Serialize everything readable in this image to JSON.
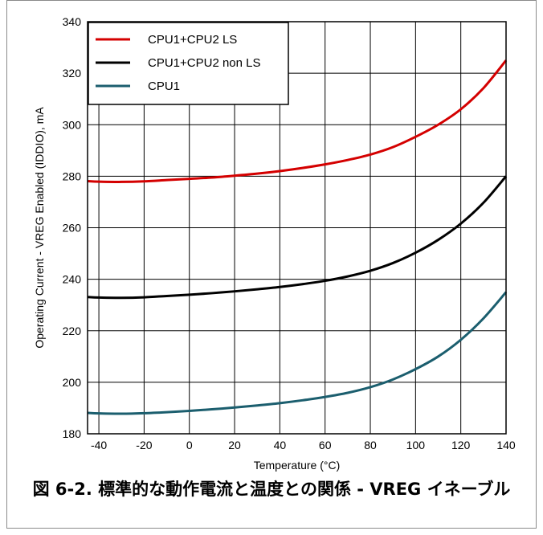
{
  "chart_data": {
    "type": "line",
    "xlabel": "Temperature (°C)",
    "ylabel": "Operating Current - VREG Enabled (IDDIO), mA",
    "xlim": [
      -45,
      140
    ],
    "ylim": [
      180,
      340
    ],
    "xticks": [
      -40,
      -20,
      0,
      20,
      40,
      60,
      80,
      100,
      120,
      140
    ],
    "yticks": [
      180,
      200,
      220,
      240,
      260,
      280,
      300,
      320,
      340
    ],
    "grid": true,
    "legend_position": "top-left",
    "x": [
      -45,
      -40,
      -30,
      -20,
      -10,
      0,
      10,
      20,
      30,
      40,
      50,
      60,
      70,
      80,
      90,
      100,
      110,
      120,
      130,
      140
    ],
    "series": [
      {
        "name": "CPU1+CPU2 LS",
        "color": "#d40000",
        "values": [
          278.1,
          277.9,
          277.8,
          278.0,
          278.5,
          279.0,
          279.5,
          280.2,
          281.0,
          282.0,
          283.2,
          284.6,
          286.3,
          288.4,
          291.3,
          295.3,
          300.0,
          306.0,
          314.2,
          325.0
        ]
      },
      {
        "name": "CPU1+CPU2 non LS",
        "color": "#000000",
        "values": [
          233.1,
          232.9,
          232.8,
          233.0,
          233.5,
          234.0,
          234.6,
          235.3,
          236.1,
          237.0,
          238.1,
          239.4,
          241.1,
          243.3,
          246.3,
          250.3,
          255.3,
          261.6,
          269.7,
          280.0
        ]
      },
      {
        "name": "CPU1",
        "color": "#1b5e6e",
        "values": [
          188.1,
          187.9,
          187.8,
          188.0,
          188.4,
          188.9,
          189.5,
          190.2,
          191.0,
          191.9,
          193.0,
          194.3,
          195.9,
          198.1,
          201.1,
          205.1,
          210.0,
          216.5,
          224.8,
          235.0
        ]
      }
    ]
  },
  "caption": "図 6-2. 標準的な動作電流と温度との関係 - VREG イネーブル"
}
